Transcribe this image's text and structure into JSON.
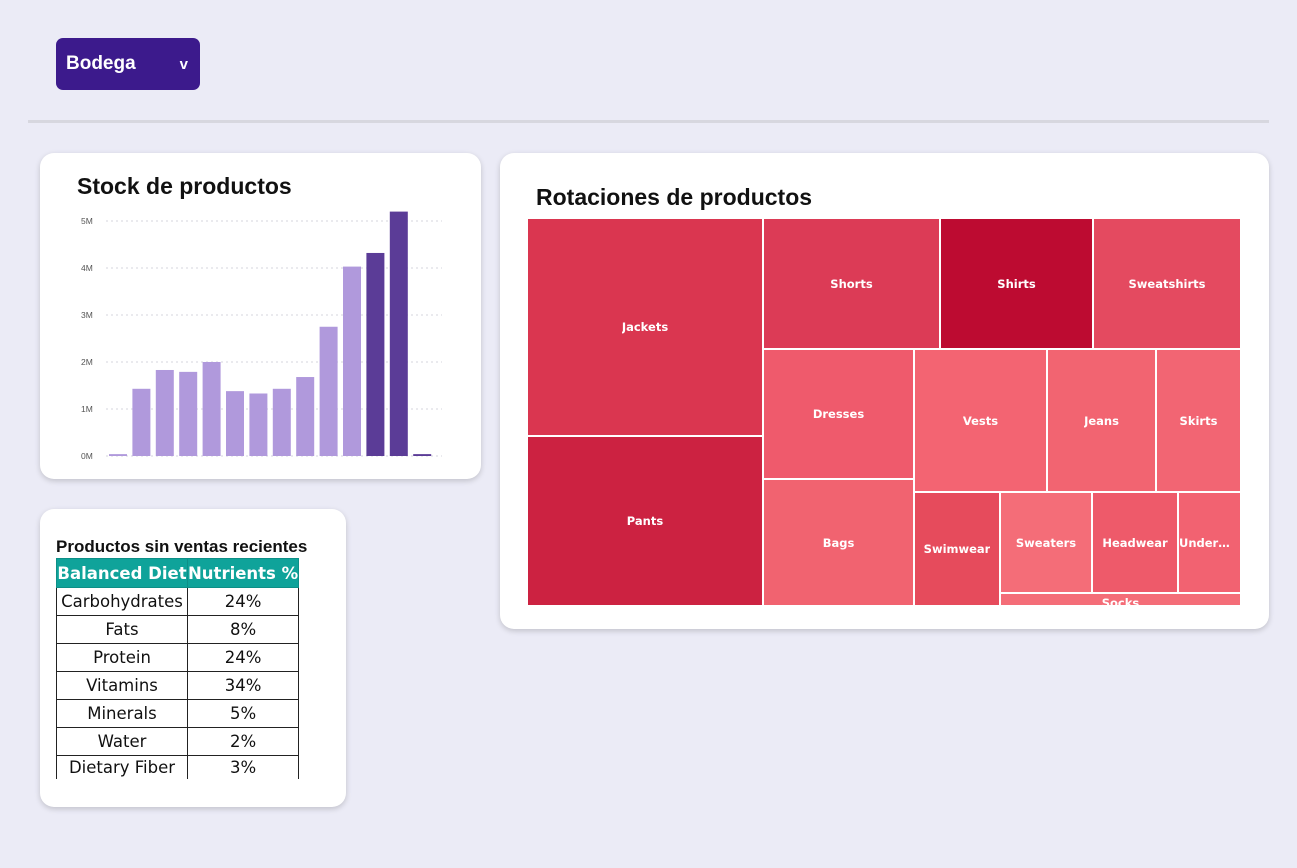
{
  "filter": {
    "label": "Bodega",
    "chevron": "v",
    "icon": "chevron-down-icon"
  },
  "stock_card": {
    "title": "Stock de productos"
  },
  "rotation_card": {
    "title": "Rotaciones de productos"
  },
  "no_sales_card": {
    "title": "Productos sin ventas recientes",
    "table": {
      "headers": [
        "Balanced Diet",
        "Nutrients %"
      ],
      "rows": [
        [
          "Carbohydrates",
          "24%"
        ],
        [
          "Fats",
          "8%"
        ],
        [
          "Protein",
          "24%"
        ],
        [
          "Vitamins",
          "34%"
        ],
        [
          "Minerals",
          "5%"
        ],
        [
          "Water",
          "2%"
        ],
        [
          "Dietary Fiber",
          "3%"
        ]
      ],
      "header_color": "#0fa39a"
    }
  },
  "chart_data": [
    {
      "type": "bar",
      "title": "Stock de productos",
      "xlabel": "",
      "ylabel": "",
      "yticks": [
        "0M",
        "1M",
        "2M",
        "3M",
        "4M",
        "5M"
      ],
      "ylim": [
        0,
        5000000
      ],
      "grid": true,
      "values": [
        0.04,
        1.43,
        1.83,
        1.79,
        2.0,
        1.38,
        1.33,
        1.43,
        1.68,
        2.75,
        4.03,
        4.32,
        5.2,
        0.04
      ],
      "value_unit": "M",
      "highlighted": [
        false,
        false,
        false,
        false,
        false,
        false,
        false,
        false,
        false,
        false,
        false,
        true,
        true,
        true
      ],
      "colors": {
        "bar": "#b099dc",
        "bar_highlight": "#5b3c97",
        "grid": "#d4d4dc",
        "tick_text": "#555555"
      }
    },
    {
      "type": "treemap",
      "title": "Rotaciones de productos",
      "items": [
        {
          "label": "Jackets",
          "color": "#da3650"
        },
        {
          "label": "Pants",
          "color": "#cc2241"
        },
        {
          "label": "Shorts",
          "color": "#dc3b56"
        },
        {
          "label": "Shirts",
          "color": "#bd0b31"
        },
        {
          "label": "Sweatshirts",
          "color": "#e44a60"
        },
        {
          "label": "Dresses",
          "color": "#ef5a6c"
        },
        {
          "label": "Vests",
          "color": "#f36472"
        },
        {
          "label": "Jeans",
          "color": "#f26471"
        },
        {
          "label": "Skirts",
          "color": "#f26573"
        },
        {
          "label": "Bags",
          "color": "#f16370"
        },
        {
          "label": "Swimwear",
          "color": "#e64b5c"
        },
        {
          "label": "Sweaters",
          "color": "#f46d78"
        },
        {
          "label": "Headwear",
          "color": "#ee5a6a"
        },
        {
          "label": "Underwe...",
          "color": "#f26271"
        },
        {
          "label": "Socks",
          "color": "#f46d78"
        }
      ]
    }
  ]
}
